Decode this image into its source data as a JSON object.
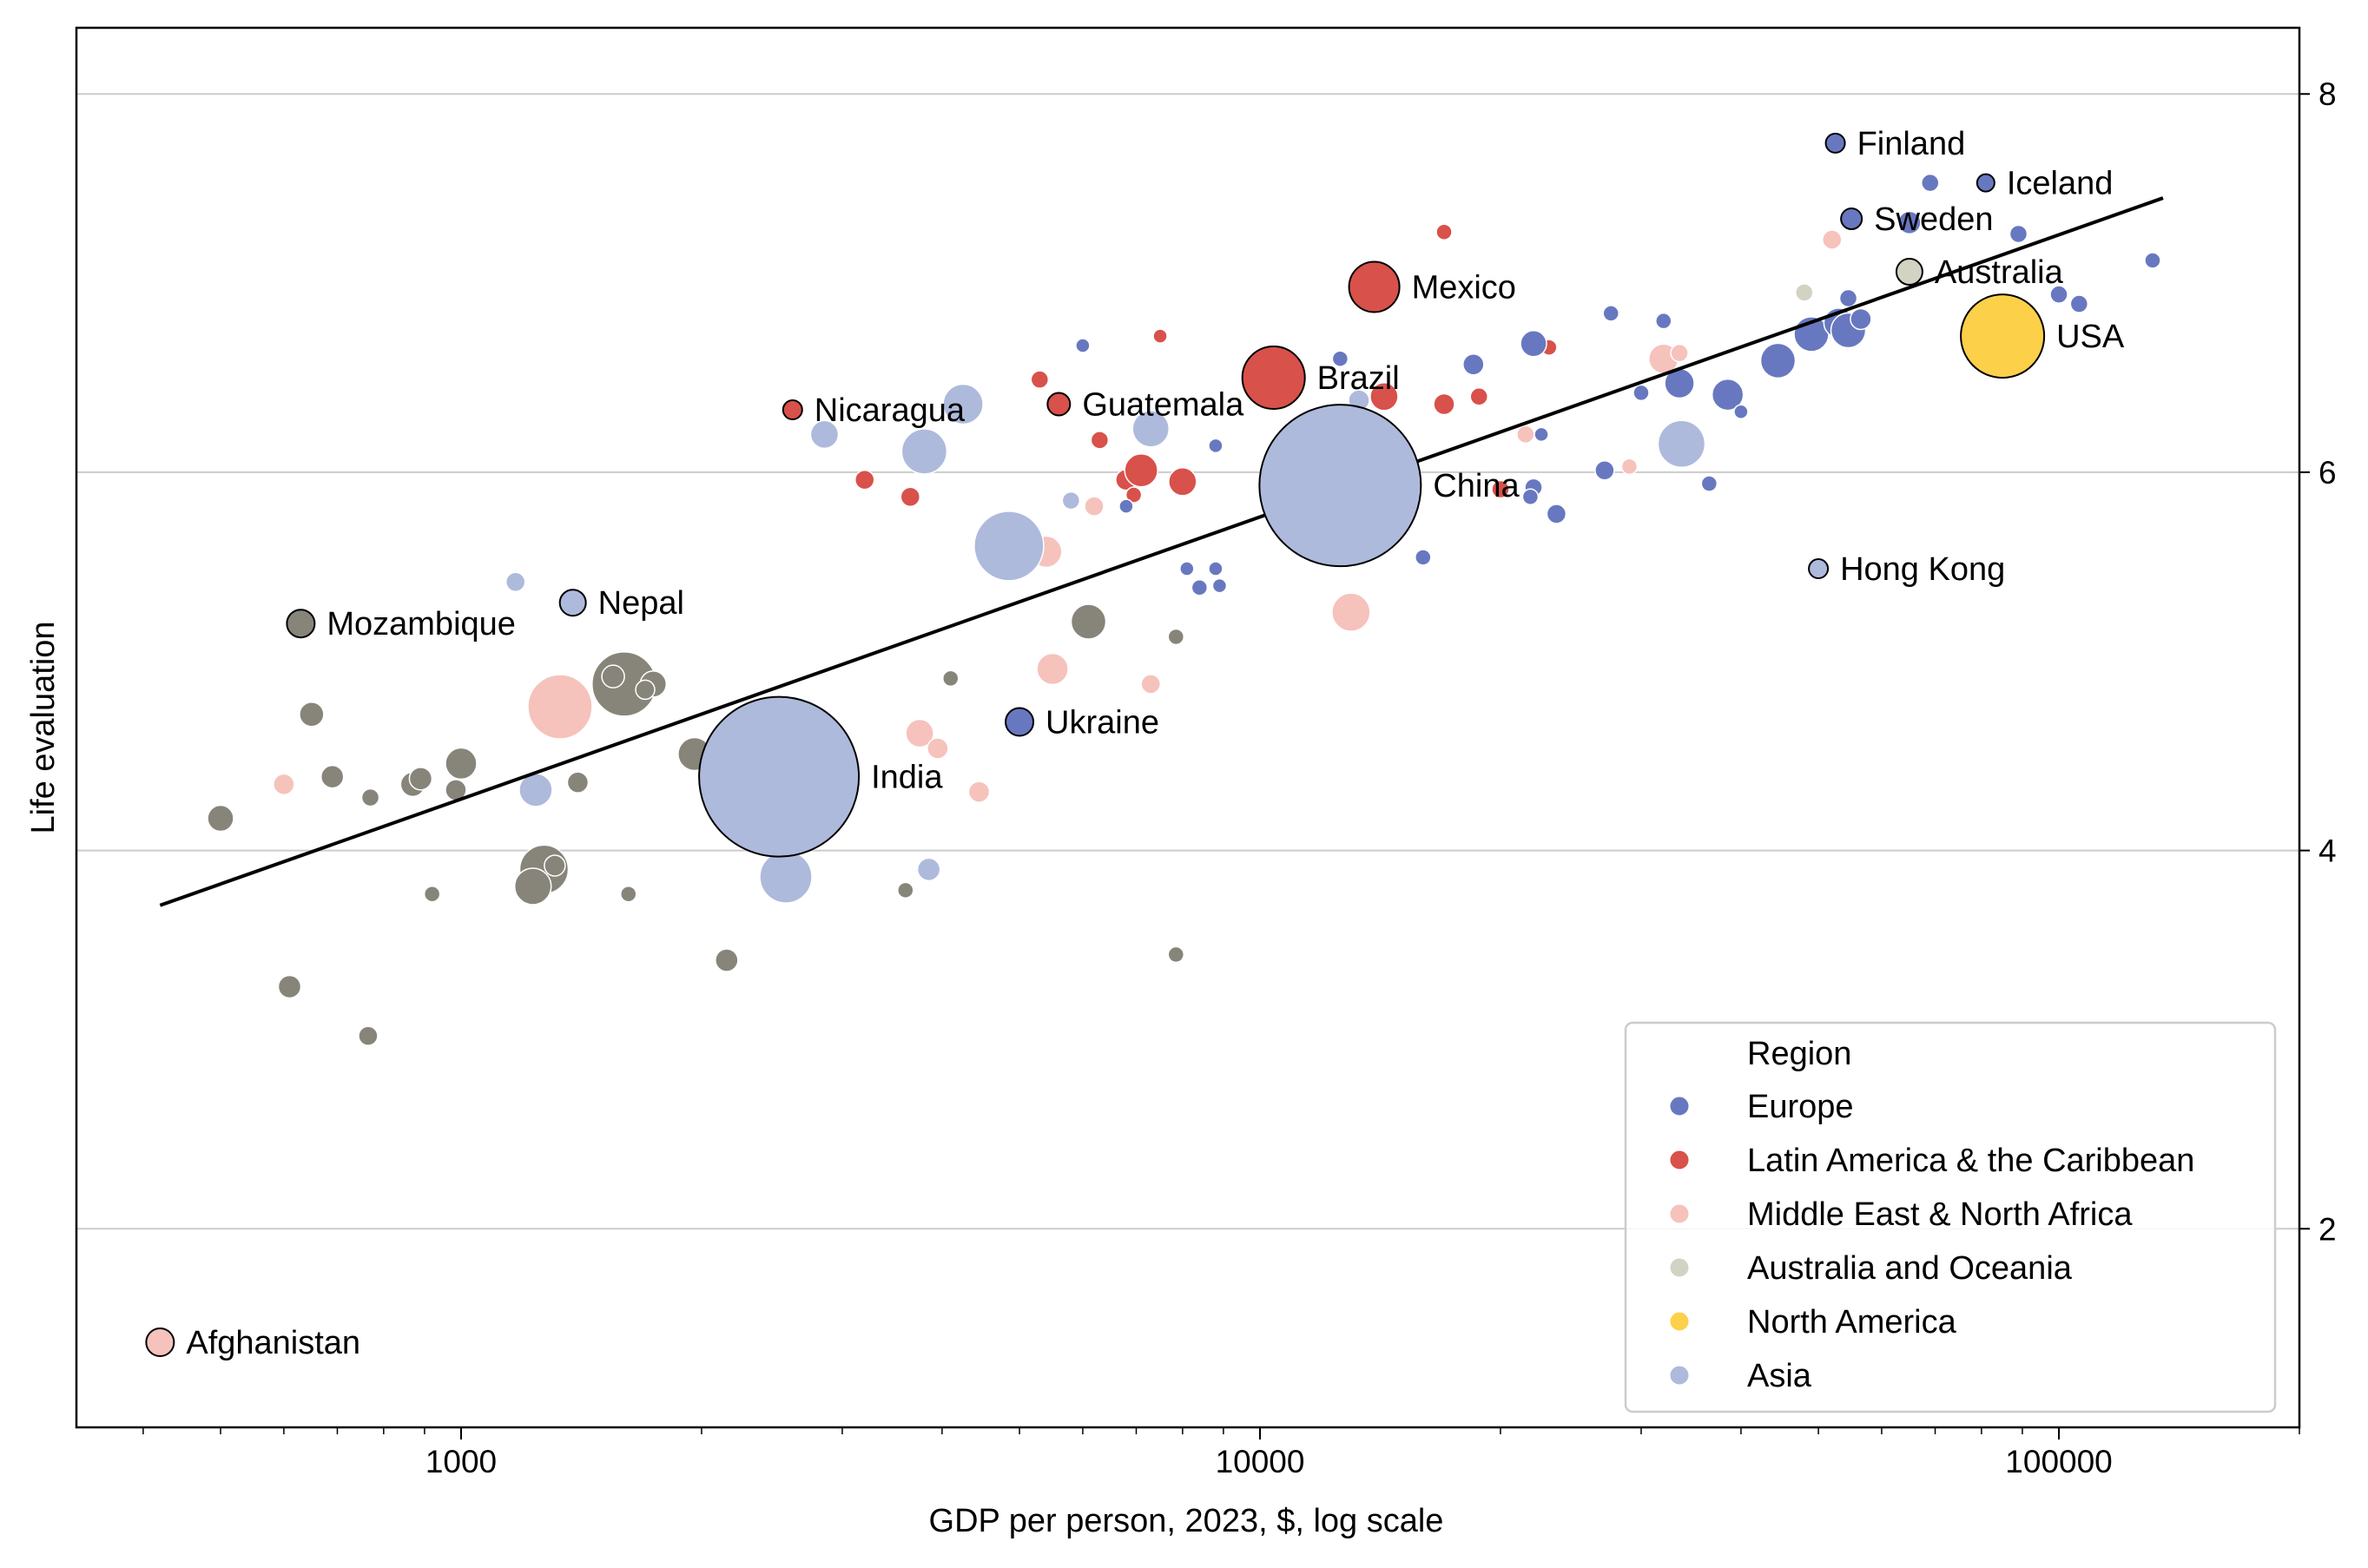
{
  "chart_data": {
    "type": "scatter",
    "title": "",
    "xlabel": "GDP per person, 2023, $, log scale",
    "ylabel": "Life evaluation",
    "x_scale": "log",
    "xlim": [
      330,
      200000
    ],
    "ylim": [
      0.95,
      8.35
    ],
    "x_ticks": [
      1000,
      10000,
      100000
    ],
    "x_tick_labels": [
      "1000",
      "10000",
      "100000"
    ],
    "y_ticks": [
      2,
      4,
      6,
      8
    ],
    "y_tick_labels": [
      "2",
      "4",
      "6",
      "8"
    ],
    "y_axis_side": "right",
    "grid": "horizontal",
    "legend": {
      "title": "Region",
      "placement": "bottom-right",
      "entries": [
        {
          "name": "Europe",
          "color": "#6878c0"
        },
        {
          "name": "Latin America & the Caribbean",
          "color": "#d8514a"
        },
        {
          "name": "Middle East & North Africa",
          "color": "#f6c2bc"
        },
        {
          "name": "Australia and Oceania",
          "color": "#d3d3c4"
        },
        {
          "name": "North America",
          "color": "#fdd04a"
        },
        {
          "name": "Asia",
          "color": "#aebadc"
        }
      ]
    },
    "other_color": "#87857a",
    "trendline": {
      "x": [
        420,
        135000
      ],
      "y": [
        3.71,
        7.45
      ],
      "color": "#000000"
    },
    "highlighted": [
      {
        "label": "Finland",
        "x": 52500,
        "y": 7.74,
        "r": 11,
        "color": "#6878c0"
      },
      {
        "label": "Iceland",
        "x": 81000,
        "y": 7.53,
        "r": 10,
        "color": "#6878c0"
      },
      {
        "label": "Sweden",
        "x": 55000,
        "y": 7.34,
        "r": 12,
        "color": "#6878c0"
      },
      {
        "label": "Australia",
        "x": 65000,
        "y": 7.06,
        "r": 15,
        "color": "#d3d3c4"
      },
      {
        "label": "Mexico",
        "x": 13900,
        "y": 6.98,
        "r": 29,
        "color": "#d8514a"
      },
      {
        "label": "USA",
        "x": 85000,
        "y": 6.72,
        "r": 48,
        "color": "#fdd04a"
      },
      {
        "label": "Brazil",
        "x": 10400,
        "y": 6.5,
        "r": 36,
        "color": "#d8514a"
      },
      {
        "label": "Guatemala",
        "x": 5600,
        "y": 6.36,
        "r": 13,
        "color": "#d8514a"
      },
      {
        "label": "Nicaragua",
        "x": 2600,
        "y": 6.33,
        "r": 11,
        "color": "#d8514a"
      },
      {
        "label": "China",
        "x": 12600,
        "y": 5.93,
        "r": 93,
        "color": "#aebadc"
      },
      {
        "label": "Hong Kong",
        "x": 50000,
        "y": 5.49,
        "r": 11,
        "color": "#aebadc"
      },
      {
        "label": "Nepal",
        "x": 1380,
        "y": 5.31,
        "r": 15,
        "color": "#aebadc"
      },
      {
        "label": "Mozambique",
        "x": 630,
        "y": 5.2,
        "r": 16,
        "color": "#87857a"
      },
      {
        "label": "Ukraine",
        "x": 5000,
        "y": 4.68,
        "r": 16,
        "color": "#6878c0"
      },
      {
        "label": "India",
        "x": 2500,
        "y": 4.39,
        "r": 92,
        "color": "#aebadc"
      },
      {
        "label": "Afghanistan",
        "x": 420,
        "y": 1.4,
        "r": 16,
        "color": "#f6c2bc"
      }
    ],
    "points": [
      {
        "x": 6000,
        "y": 6.67,
        "r": 8,
        "color": "#6878c0"
      },
      {
        "x": 7500,
        "y": 6.72,
        "r": 8,
        "color": "#d8514a"
      },
      {
        "x": 5300,
        "y": 6.49,
        "r": 10,
        "color": "#d8514a"
      },
      {
        "x": 6300,
        "y": 6.17,
        "r": 10,
        "color": "#d8514a"
      },
      {
        "x": 3200,
        "y": 5.96,
        "r": 11,
        "color": "#d8514a"
      },
      {
        "x": 3650,
        "y": 5.87,
        "r": 11,
        "color": "#d8514a"
      },
      {
        "x": 6800,
        "y": 5.96,
        "r": 12,
        "color": "#d8514a"
      },
      {
        "x": 7100,
        "y": 6.01,
        "r": 19,
        "color": "#d8514a"
      },
      {
        "x": 8000,
        "y": 5.95,
        "r": 16,
        "color": "#d8514a"
      },
      {
        "x": 6950,
        "y": 5.88,
        "r": 9,
        "color": "#d8514a"
      },
      {
        "x": 11200,
        "y": 5.85,
        "r": 11,
        "color": "#d8514a"
      },
      {
        "x": 14300,
        "y": 6.4,
        "r": 16,
        "color": "#d8514a"
      },
      {
        "x": 17000,
        "y": 6.36,
        "r": 12,
        "color": "#d8514a"
      },
      {
        "x": 18800,
        "y": 6.4,
        "r": 10,
        "color": "#d8514a"
      },
      {
        "x": 17000,
        "y": 7.27,
        "r": 9,
        "color": "#d8514a"
      },
      {
        "x": 20000,
        "y": 5.91,
        "r": 10,
        "color": "#d8514a"
      },
      {
        "x": 23000,
        "y": 6.66,
        "r": 9,
        "color": "#d8514a"
      },
      {
        "x": 8800,
        "y": 6.14,
        "r": 8,
        "color": "#6878c0"
      },
      {
        "x": 6800,
        "y": 5.82,
        "r": 8,
        "color": "#6878c0"
      },
      {
        "x": 8100,
        "y": 5.49,
        "r": 8,
        "color": "#6878c0"
      },
      {
        "x": 8800,
        "y": 5.49,
        "r": 8,
        "color": "#6878c0"
      },
      {
        "x": 8400,
        "y": 5.39,
        "r": 9,
        "color": "#6878c0"
      },
      {
        "x": 8900,
        "y": 5.4,
        "r": 8,
        "color": "#6878c0"
      },
      {
        "x": 12600,
        "y": 6.6,
        "r": 9,
        "color": "#6878c0"
      },
      {
        "x": 12700,
        "y": 5.88,
        "r": 7,
        "color": "#6878c0"
      },
      {
        "x": 14000,
        "y": 5.93,
        "r": 26,
        "color": "#6878c0"
      },
      {
        "x": 16000,
        "y": 5.55,
        "r": 9,
        "color": "#6878c0"
      },
      {
        "x": 18500,
        "y": 6.57,
        "r": 12,
        "color": "#6878c0"
      },
      {
        "x": 22000,
        "y": 6.68,
        "r": 15,
        "color": "#6878c0"
      },
      {
        "x": 22500,
        "y": 6.2,
        "r": 8,
        "color": "#6878c0"
      },
      {
        "x": 22000,
        "y": 5.92,
        "r": 10,
        "color": "#6878c0"
      },
      {
        "x": 21800,
        "y": 5.87,
        "r": 9,
        "color": "#6878c0"
      },
      {
        "x": 23500,
        "y": 5.78,
        "r": 11,
        "color": "#6878c0"
      },
      {
        "x": 27000,
        "y": 6.01,
        "r": 11,
        "color": "#6878c0"
      },
      {
        "x": 27500,
        "y": 6.84,
        "r": 9,
        "color": "#6878c0"
      },
      {
        "x": 30000,
        "y": 6.42,
        "r": 9,
        "color": "#6878c0"
      },
      {
        "x": 32000,
        "y": 6.8,
        "r": 9,
        "color": "#6878c0"
      },
      {
        "x": 33500,
        "y": 6.47,
        "r": 17,
        "color": "#6878c0"
      },
      {
        "x": 36500,
        "y": 5.94,
        "r": 9,
        "color": "#6878c0"
      },
      {
        "x": 38500,
        "y": 6.41,
        "r": 18,
        "color": "#6878c0"
      },
      {
        "x": 40000,
        "y": 6.32,
        "r": 8,
        "color": "#6878c0"
      },
      {
        "x": 44500,
        "y": 6.59,
        "r": 20,
        "color": "#6878c0"
      },
      {
        "x": 49000,
        "y": 6.73,
        "r": 20,
        "color": "#6878c0"
      },
      {
        "x": 53000,
        "y": 6.79,
        "r": 17,
        "color": "#6878c0"
      },
      {
        "x": 54500,
        "y": 6.75,
        "r": 20,
        "color": "#6878c0"
      },
      {
        "x": 54500,
        "y": 6.92,
        "r": 10,
        "color": "#6878c0"
      },
      {
        "x": 56500,
        "y": 6.81,
        "r": 12,
        "color": "#6878c0"
      },
      {
        "x": 65000,
        "y": 7.32,
        "r": 13,
        "color": "#6878c0"
      },
      {
        "x": 69000,
        "y": 7.53,
        "r": 10,
        "color": "#6878c0"
      },
      {
        "x": 89000,
        "y": 7.26,
        "r": 10,
        "color": "#6878c0"
      },
      {
        "x": 100000,
        "y": 6.94,
        "r": 10,
        "color": "#6878c0"
      },
      {
        "x": 106000,
        "y": 6.89,
        "r": 10,
        "color": "#6878c0"
      },
      {
        "x": 131000,
        "y": 7.12,
        "r": 9,
        "color": "#6878c0"
      },
      {
        "x": 600,
        "y": 4.35,
        "r": 12,
        "color": "#f6c2bc"
      },
      {
        "x": 3750,
        "y": 4.62,
        "r": 16,
        "color": "#f6c2bc"
      },
      {
        "x": 3950,
        "y": 4.54,
        "r": 12,
        "color": "#f6c2bc"
      },
      {
        "x": 4450,
        "y": 4.31,
        "r": 12,
        "color": "#f6c2bc"
      },
      {
        "x": 5500,
        "y": 4.96,
        "r": 18,
        "color": "#f6c2bc"
      },
      {
        "x": 5400,
        "y": 5.58,
        "r": 18,
        "color": "#f6c2bc"
      },
      {
        "x": 6200,
        "y": 5.82,
        "r": 11,
        "color": "#f6c2bc"
      },
      {
        "x": 7300,
        "y": 4.88,
        "r": 11,
        "color": "#f6c2bc"
      },
      {
        "x": 13000,
        "y": 5.26,
        "r": 22,
        "color": "#f6c2bc"
      },
      {
        "x": 21500,
        "y": 6.2,
        "r": 10,
        "color": "#f6c2bc"
      },
      {
        "x": 29000,
        "y": 6.03,
        "r": 9,
        "color": "#f6c2bc"
      },
      {
        "x": 32000,
        "y": 6.6,
        "r": 17,
        "color": "#f6c2bc"
      },
      {
        "x": 33500,
        "y": 6.63,
        "r": 10,
        "color": "#f6c2bc"
      },
      {
        "x": 52000,
        "y": 7.23,
        "r": 11,
        "color": "#f6c2bc"
      },
      {
        "x": 1330,
        "y": 4.76,
        "r": 37,
        "color": "#f6c2bc"
      },
      {
        "x": 48000,
        "y": 6.95,
        "r": 10,
        "color": "#d3d3c4"
      },
      {
        "x": 88000,
        "y": 6.57,
        "r": 10,
        "color": "#d3d3c4"
      },
      {
        "x": 1170,
        "y": 5.42,
        "r": 11,
        "color": "#aebadc"
      },
      {
        "x": 2850,
        "y": 6.2,
        "r": 16,
        "color": "#aebadc"
      },
      {
        "x": 3800,
        "y": 6.11,
        "r": 26,
        "color": "#aebadc"
      },
      {
        "x": 4250,
        "y": 6.36,
        "r": 23,
        "color": "#aebadc"
      },
      {
        "x": 4850,
        "y": 5.61,
        "r": 40,
        "color": "#aebadc"
      },
      {
        "x": 5800,
        "y": 5.85,
        "r": 10,
        "color": "#aebadc"
      },
      {
        "x": 7300,
        "y": 6.23,
        "r": 21,
        "color": "#aebadc"
      },
      {
        "x": 11500,
        "y": 5.95,
        "r": 17,
        "color": "#aebadc"
      },
      {
        "x": 13300,
        "y": 6.38,
        "r": 12,
        "color": "#aebadc"
      },
      {
        "x": 33700,
        "y": 6.15,
        "r": 27,
        "color": "#aebadc"
      },
      {
        "x": 1240,
        "y": 4.32,
        "r": 19,
        "color": "#aebadc"
      },
      {
        "x": 2400,
        "y": 4.34,
        "r": 13,
        "color": "#aebadc"
      },
      {
        "x": 2550,
        "y": 3.86,
        "r": 30,
        "color": "#aebadc"
      },
      {
        "x": 3850,
        "y": 3.9,
        "r": 13,
        "color": "#aebadc"
      },
      {
        "x": 500,
        "y": 4.17,
        "r": 15,
        "color": "#87857a"
      },
      {
        "x": 610,
        "y": 3.28,
        "r": 13,
        "color": "#87857a"
      },
      {
        "x": 650,
        "y": 4.72,
        "r": 14,
        "color": "#87857a"
      },
      {
        "x": 690,
        "y": 4.39,
        "r": 13,
        "color": "#87857a"
      },
      {
        "x": 770,
        "y": 4.28,
        "r": 10,
        "color": "#87857a"
      },
      {
        "x": 765,
        "y": 3.02,
        "r": 11,
        "color": "#87857a"
      },
      {
        "x": 870,
        "y": 4.35,
        "r": 14,
        "color": "#87857a"
      },
      {
        "x": 890,
        "y": 4.38,
        "r": 13,
        "color": "#87857a"
      },
      {
        "x": 920,
        "y": 3.77,
        "r": 9,
        "color": "#87857a"
      },
      {
        "x": 985,
        "y": 4.32,
        "r": 12,
        "color": "#87857a"
      },
      {
        "x": 1000,
        "y": 4.46,
        "r": 18,
        "color": "#87857a"
      },
      {
        "x": 1270,
        "y": 3.9,
        "r": 28,
        "color": "#87857a"
      },
      {
        "x": 1230,
        "y": 3.81,
        "r": 21,
        "color": "#87857a"
      },
      {
        "x": 1310,
        "y": 3.92,
        "r": 12,
        "color": "#87857a"
      },
      {
        "x": 1400,
        "y": 4.36,
        "r": 12,
        "color": "#87857a"
      },
      {
        "x": 1600,
        "y": 4.88,
        "r": 37,
        "color": "#87857a"
      },
      {
        "x": 1550,
        "y": 4.92,
        "r": 13,
        "color": "#87857a"
      },
      {
        "x": 1740,
        "y": 4.88,
        "r": 15,
        "color": "#87857a"
      },
      {
        "x": 1700,
        "y": 4.85,
        "r": 11,
        "color": "#87857a"
      },
      {
        "x": 1620,
        "y": 3.77,
        "r": 9,
        "color": "#87857a"
      },
      {
        "x": 1960,
        "y": 4.51,
        "r": 19,
        "color": "#87857a"
      },
      {
        "x": 2120,
        "y": 4.53,
        "r": 11,
        "color": "#87857a"
      },
      {
        "x": 2150,
        "y": 3.42,
        "r": 13,
        "color": "#87857a"
      },
      {
        "x": 2250,
        "y": 4.35,
        "r": 16,
        "color": "#87857a"
      },
      {
        "x": 3600,
        "y": 3.79,
        "r": 9,
        "color": "#87857a"
      },
      {
        "x": 4100,
        "y": 4.91,
        "r": 9,
        "color": "#87857a"
      },
      {
        "x": 6100,
        "y": 5.21,
        "r": 20,
        "color": "#87857a"
      },
      {
        "x": 7850,
        "y": 5.13,
        "r": 9,
        "color": "#87857a"
      },
      {
        "x": 7850,
        "y": 3.45,
        "r": 9,
        "color": "#87857a"
      },
      {
        "x": 11900,
        "y": 5.84,
        "r": 9,
        "color": "#87857a"
      }
    ]
  }
}
